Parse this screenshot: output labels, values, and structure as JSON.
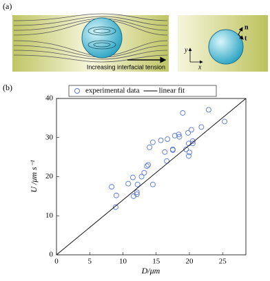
{
  "panels": {
    "a": "(a)",
    "b": "(b)"
  },
  "diagram": {
    "caption": "Increasing interfacial tension",
    "normal": "n",
    "tangent": "t",
    "axis_x": "x",
    "axis_y": "y"
  },
  "chart_data": {
    "type": "scatter",
    "xlabel": "D/μm",
    "ylabel": "U /μm s⁻¹",
    "xlim": [
      0,
      28.5
    ],
    "ylim": [
      0,
      40
    ],
    "xticks": [
      0,
      5,
      10,
      15,
      20,
      25
    ],
    "yticks": [
      0,
      10,
      20,
      30,
      40
    ],
    "legend": "top",
    "series": [
      {
        "name": "experimental data",
        "type": "scatter",
        "color": "#5b78d6",
        "x": [
          8.3,
          8.9,
          9.0,
          10.8,
          11.5,
          11.6,
          12.1,
          12.1,
          12.2,
          12.8,
          13.2,
          13.6,
          13.8,
          14.0,
          14.5,
          14.5,
          15.7,
          16.3,
          16.6,
          16.7,
          17.5,
          17.5,
          17.8,
          18.4,
          18.5,
          19.0,
          19.5,
          19.8,
          19.9,
          19.9,
          20.0,
          20.3,
          20.5,
          20.5,
          21.8,
          22.9,
          25.3
        ],
        "values": [
          17.4,
          12.2,
          15.2,
          18.2,
          19.8,
          15.0,
          16.0,
          15.5,
          18.0,
          20.0,
          21.0,
          22.7,
          23.0,
          27.5,
          18.0,
          28.8,
          29.3,
          26.3,
          24.0,
          29.6,
          27.0,
          26.8,
          30.5,
          30.8,
          30.2,
          36.3,
          27.0,
          31.2,
          25.3,
          28.5,
          26.2,
          32.0,
          29.1,
          28.5,
          32.7,
          37.1,
          34.1
        ]
      },
      {
        "name": "linear fit",
        "type": "line",
        "color": "#000000",
        "x": [
          0,
          28.5
        ],
        "values": [
          0,
          40
        ]
      }
    ]
  }
}
